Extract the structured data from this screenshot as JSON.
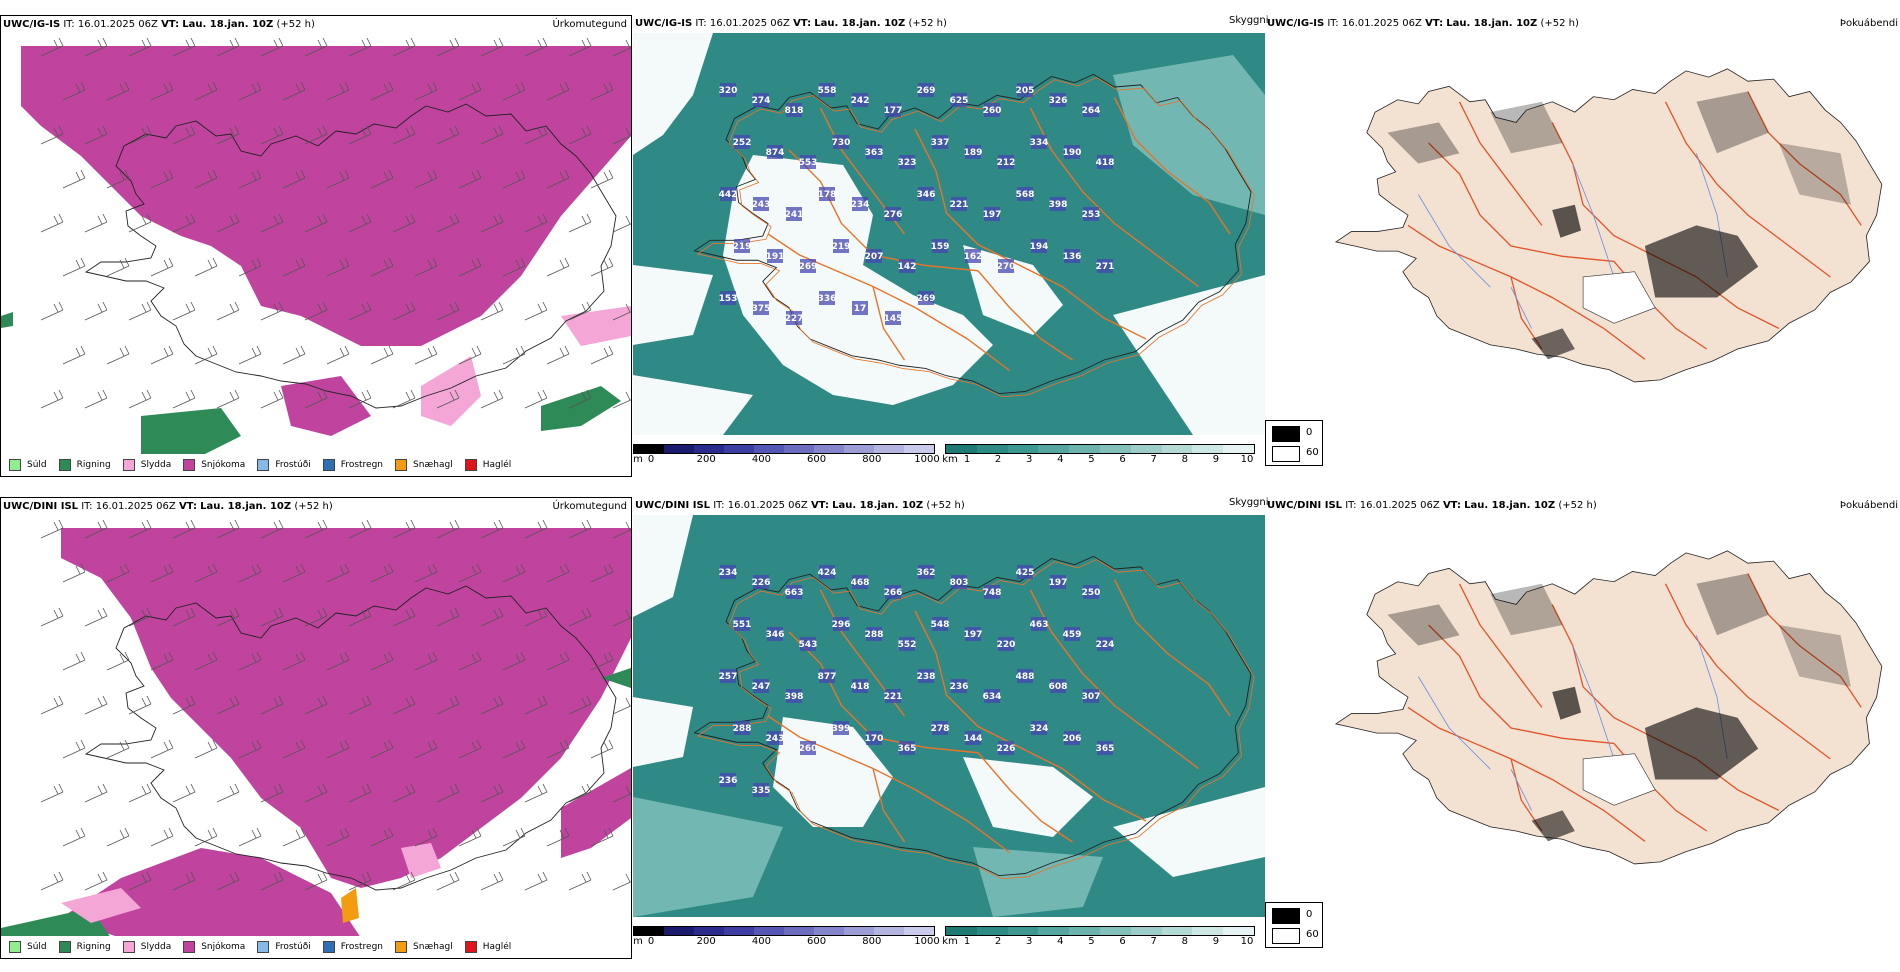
{
  "rows": [
    {
      "model": "UWC/IG-IS",
      "it_label": "IT:",
      "it_value": "16.01.2025 06Z",
      "vt_label": "VT:",
      "vt_value": "Lau. 18.jan. 10Z",
      "lead": "(+52 h)",
      "precip_title": "Úrkomutegund",
      "cloud_title": "Skyggni",
      "fog_title": "Þokuábendi",
      "elevations": [
        "320",
        "274",
        "818",
        "558",
        "242",
        "177",
        "269",
        "625",
        "260",
        "205",
        "326",
        "264",
        "252",
        "874",
        "553",
        "730",
        "363",
        "323",
        "337",
        "189",
        "212",
        "334",
        "190",
        "418",
        "442",
        "243",
        "241",
        "178",
        "234",
        "276",
        "346",
        "221",
        "197",
        "568",
        "398",
        "253",
        "219",
        "191",
        "269",
        "219",
        "207",
        "142",
        "159",
        "162",
        "270",
        "194",
        "136",
        "271",
        "153",
        "375",
        "227",
        "336",
        "17",
        "145",
        "269"
      ]
    },
    {
      "model": "UWC/DINI ISL",
      "it_label": "IT:",
      "it_value": "16.01.2025 06Z",
      "vt_label": "VT:",
      "vt_value": "Lau. 18.jan. 10Z",
      "lead": "(+52 h)",
      "precip_title": "Úrkomutegund",
      "cloud_title": "Skyggni",
      "fog_title": "Þokuábendi",
      "elevations": [
        "234",
        "226",
        "663",
        "424",
        "468",
        "266",
        "362",
        "803",
        "748",
        "425",
        "197",
        "250",
        "551",
        "346",
        "543",
        "296",
        "288",
        "552",
        "548",
        "197",
        "220",
        "463",
        "459",
        "224",
        "257",
        "247",
        "398",
        "877",
        "418",
        "221",
        "238",
        "236",
        "634",
        "488",
        "608",
        "307",
        "288",
        "243",
        "260",
        "399",
        "170",
        "365",
        "278",
        "144",
        "226",
        "324",
        "206",
        "365",
        "236",
        "335"
      ]
    }
  ],
  "precip_legend": [
    {
      "label": "Súld",
      "color": "#90ee90"
    },
    {
      "label": "Rigning",
      "color": "#2e8b57"
    },
    {
      "label": "Slydda",
      "color": "#f4a6d7"
    },
    {
      "label": "Snjókoma",
      "color": "#c0449e"
    },
    {
      "label": "Frostúði",
      "color": "#87b8ea"
    },
    {
      "label": "Frostregn",
      "color": "#2f6fb5"
    },
    {
      "label": "Snæhagl",
      "color": "#f39c12"
    },
    {
      "label": "Haglél",
      "color": "#e0141c"
    }
  ],
  "cloud_base_scale": {
    "unit": "m",
    "ticks": [
      "0",
      "200",
      "400",
      "600",
      "800",
      "1000"
    ],
    "colors": [
      "#000000",
      "#1b1b6e",
      "#2b2b8e",
      "#3d3da4",
      "#5555b4",
      "#6d6dc0",
      "#8585cc",
      "#9d9dd6",
      "#b4b4e0",
      "#cacaea"
    ]
  },
  "visibility_scale": {
    "unit": "km",
    "ticks": [
      "1",
      "2",
      "3",
      "4",
      "5",
      "6",
      "7",
      "8",
      "9",
      "10"
    ],
    "colors": [
      "#1f7a74",
      "#2e8a84",
      "#3e9892",
      "#55a6a0",
      "#6cb3ad",
      "#84c0ba",
      "#9ccdc8",
      "#b4dad6",
      "#cce7e4",
      "#e6f3f2"
    ]
  },
  "fog_key": {
    "high": "0",
    "low": "60",
    "high_color": "#000000",
    "low_color": "#ffffff"
  },
  "colors": {
    "snow": "#c0449e",
    "rain": "#2e8b57",
    "sleet": "#f4a6d7",
    "teal": "#2f8a85",
    "land": "#f3e1d2",
    "road": "#e8742a",
    "river": "#6d8fe0"
  }
}
